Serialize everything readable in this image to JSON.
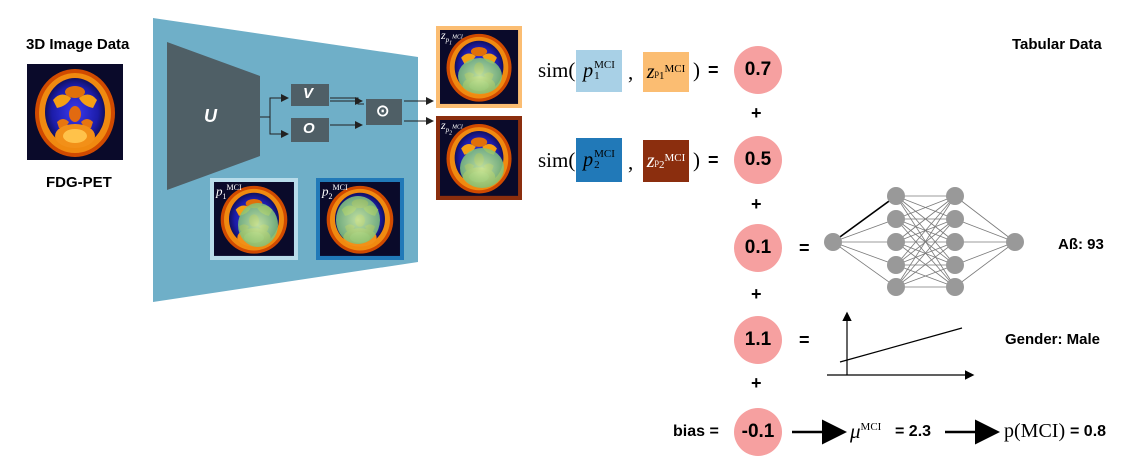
{
  "left": {
    "title": "3D Image Data",
    "caption": "FDG-PET"
  },
  "encoder": {
    "u_label": "U",
    "v_label": "V",
    "o_label": "O",
    "op_symbol": "⊙"
  },
  "prototypes": {
    "p": "p",
    "sub1": "1",
    "sub2": "2",
    "sup": "MCI"
  },
  "sim": {
    "fn": "sim(",
    "close": ")",
    "comma": ",",
    "z": "z"
  },
  "contributions": {
    "values": [
      "0.7",
      "0.5",
      "0.1",
      "1.1",
      "-0.1"
    ],
    "bias_label": "bias ="
  },
  "tabular": {
    "title": "Tabular Data",
    "feature1": "Aß: 93",
    "feature2": "Gender: Male"
  },
  "output": {
    "mu": "μ",
    "mu_sup": "MCI",
    "mu_value": "= 2.3",
    "p_expr": "p(MCI)",
    "p_value": "= 0.8"
  },
  "symbols": {
    "plus": "+",
    "equals": "="
  },
  "colors": {
    "trapezoid": "#6fafc8",
    "encoder": "#4f5f66",
    "box_dark": "#4f5f66",
    "p1": "#a8d0e6",
    "p2": "#2179b8",
    "z1": "#fbbd72",
    "z2": "#8b2e0e",
    "circle": "#f6a0a0",
    "node": "#999999"
  }
}
